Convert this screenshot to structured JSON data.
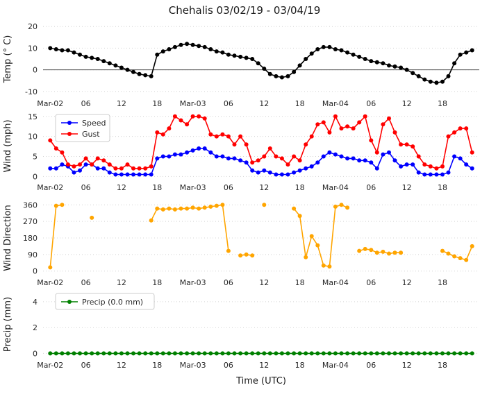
{
  "title": "Chehalis 03/02/19 - 03/04/19",
  "xlabel": "Time (UTC)",
  "x_range": [
    -1.2,
    72.2
  ],
  "x_ticks": {
    "positions": [
      0,
      6,
      12,
      18,
      24,
      30,
      36,
      42,
      48,
      54,
      60,
      66
    ],
    "labels": [
      "Mar-02",
      "06",
      "12",
      "18",
      "Mar-03",
      "06",
      "12",
      "18",
      "Mar-04",
      "06",
      "12",
      "18"
    ]
  },
  "chart_data": [
    {
      "name": "temperature",
      "type": "line",
      "ylabel": "Temp (° C)",
      "ylim": [
        -12,
        22
      ],
      "yticks": [
        -10,
        0,
        10,
        20
      ],
      "zero_line": true,
      "show_legend": false,
      "series": [
        {
          "name": "Temp",
          "color": "#000000",
          "values": [
            10,
            9.5,
            9,
            9,
            8,
            7,
            6,
            5.5,
            5,
            4,
            3,
            2,
            1,
            0,
            -1,
            -2,
            -2.5,
            -3,
            7,
            8.5,
            9.5,
            10.5,
            11.5,
            12,
            11.5,
            11,
            10.5,
            9.5,
            8.5,
            8,
            7,
            6.5,
            6,
            5.5,
            5,
            3,
            0.5,
            -2,
            -3,
            -3.5,
            -3,
            -1,
            2,
            5,
            7.5,
            9.5,
            10.5,
            10.5,
            9.5,
            9,
            8,
            7,
            6,
            5,
            4,
            3.5,
            3,
            2,
            1.5,
            1,
            0,
            -1.5,
            -3,
            -4.5,
            -5.5,
            -6,
            -5.5,
            -3,
            3,
            7,
            8,
            9
          ]
        }
      ]
    },
    {
      "name": "wind",
      "type": "line",
      "ylabel": "Wind (mph)",
      "ylim": [
        -0.8,
        16
      ],
      "yticks": [
        0,
        5,
        10,
        15
      ],
      "zero_line": false,
      "show_legend": true,
      "series": [
        {
          "name": "Speed",
          "color": "#0000ff",
          "values": [
            2,
            2,
            3,
            2.5,
            1,
            1.5,
            3,
            3,
            2,
            2,
            1,
            0.5,
            0.5,
            0.5,
            0.5,
            0.5,
            0.5,
            0.5,
            4.5,
            5,
            5,
            5.5,
            5.5,
            6,
            6.5,
            7,
            7,
            6,
            5,
            5,
            4.5,
            4.5,
            4,
            3.5,
            1.5,
            1,
            1.5,
            1,
            0.5,
            0.5,
            0.5,
            1,
            1.5,
            2,
            2.5,
            3.5,
            5,
            6,
            5.5,
            5,
            4.5,
            4.5,
            4,
            4,
            3.5,
            2,
            5.5,
            6,
            4,
            2.5,
            3,
            3,
            1,
            0.5,
            0.5,
            0.5,
            0.5,
            1,
            5,
            4.5,
            3,
            2
          ]
        },
        {
          "name": "Gust",
          "color": "#ff0000",
          "values": [
            9,
            7,
            6,
            3,
            2.5,
            3,
            4.5,
            3,
            4.5,
            4,
            3,
            2,
            2,
            3,
            2,
            2,
            2,
            2.5,
            11,
            10.5,
            12,
            15,
            14,
            13,
            15,
            15,
            14.5,
            10.5,
            10,
            10.5,
            10,
            8,
            10,
            8,
            3.5,
            4,
            5,
            7,
            5,
            4.5,
            3,
            5,
            4,
            8,
            10,
            13,
            13.5,
            11,
            15,
            12,
            12.5,
            12,
            13.5,
            15,
            9,
            6,
            13,
            14.5,
            11,
            8,
            8,
            7.5,
            5,
            3,
            2.5,
            2,
            2.5,
            10,
            11,
            12,
            12,
            6
          ]
        }
      ]
    },
    {
      "name": "wind-direction",
      "type": "scatter",
      "ylabel": "Wind Direction",
      "ylim": [
        -20,
        380
      ],
      "yticks": [
        0,
        90,
        180,
        270,
        360
      ],
      "zero_line": false,
      "show_legend": false,
      "series": [
        {
          "name": "Direction",
          "color": "#ffa500",
          "values": [
            20,
            355,
            360,
            null,
            null,
            null,
            null,
            290,
            null,
            null,
            null,
            null,
            null,
            null,
            null,
            null,
            null,
            275,
            340,
            335,
            340,
            335,
            340,
            340,
            345,
            340,
            345,
            350,
            355,
            360,
            110,
            null,
            85,
            90,
            85,
            null,
            360,
            null,
            null,
            null,
            null,
            340,
            300,
            75,
            190,
            140,
            30,
            25,
            350,
            360,
            345,
            null,
            110,
            120,
            115,
            100,
            105,
            95,
            100,
            100,
            null,
            null,
            null,
            null,
            null,
            null,
            110,
            95,
            80,
            70,
            60,
            135
          ]
        }
      ]
    },
    {
      "name": "precip",
      "type": "line",
      "ylabel": "Precip (mm)",
      "ylim": [
        -0.3,
        4.8
      ],
      "yticks": [
        0,
        2,
        4
      ],
      "zero_line": false,
      "show_legend": true,
      "series": [
        {
          "name": "Precip (0.0 mm)",
          "color": "#008000",
          "values": [
            0,
            0,
            0,
            0,
            0,
            0,
            0,
            0,
            0,
            0,
            0,
            0,
            0,
            0,
            0,
            0,
            0,
            0,
            0,
            0,
            0,
            0,
            0,
            0,
            0,
            0,
            0,
            0,
            0,
            0,
            0,
            0,
            0,
            0,
            0,
            0,
            0,
            0,
            0,
            0,
            0,
            0,
            0,
            0,
            0,
            0,
            0,
            0,
            0,
            0,
            0,
            0,
            0,
            0,
            0,
            0,
            0,
            0,
            0,
            0,
            0,
            0,
            0,
            0,
            0,
            0,
            0,
            0,
            0,
            0,
            0,
            0
          ]
        }
      ]
    }
  ]
}
